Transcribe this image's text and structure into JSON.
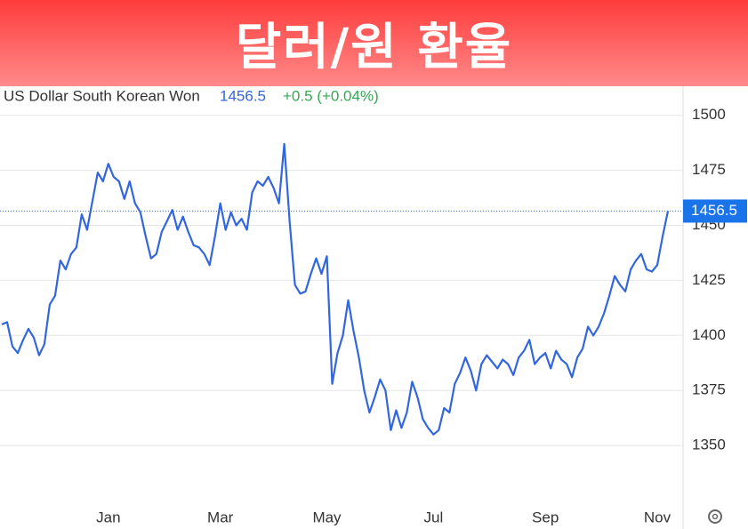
{
  "chart_data": {
    "type": "line",
    "title": "달러/원 환율",
    "change": "+0.5 (+0.04%)",
    "categories": [
      null,
      null,
      null,
      null,
      null,
      null,
      null,
      null,
      null,
      null,
      null,
      null,
      null,
      null,
      null,
      null,
      null,
      null,
      null,
      null,
      "Jan",
      null,
      null,
      null,
      null,
      null,
      null,
      null,
      null,
      null,
      null,
      null,
      null,
      null,
      null,
      null,
      null,
      null,
      null,
      null,
      null,
      "Mar",
      null,
      null,
      null,
      null,
      null,
      null,
      null,
      null,
      null,
      null,
      null,
      null,
      null,
      null,
      null,
      null,
      null,
      null,
      null,
      "May",
      null,
      null,
      null,
      null,
      null,
      null,
      null,
      null,
      null,
      null,
      null,
      null,
      null,
      null,
      null,
      null,
      null,
      null,
      null,
      "Jul",
      null,
      null,
      null,
      null,
      null,
      null,
      null,
      null,
      null,
      null,
      null,
      null,
      null,
      null,
      null,
      null,
      null,
      null,
      null,
      null,
      "Sep",
      null,
      null,
      null,
      null,
      null,
      null,
      null,
      null,
      null,
      null,
      null,
      null,
      null,
      null,
      null,
      null,
      null,
      null,
      null,
      null,
      "Nov",
      null,
      null
    ],
    "series": [
      {
        "name": "US Dollar South Korean Won",
        "color": "#3366dd",
        "values": [
          1405,
          1406,
          1395,
          1392,
          1398,
          1403,
          1399,
          1391,
          1396,
          1414,
          1418,
          1434,
          1430,
          1437,
          1440,
          1455,
          1448,
          1461,
          1474,
          1470,
          1478,
          1472,
          1470,
          1462,
          1470,
          1460,
          1456,
          1445,
          1435,
          1437,
          1447,
          1452,
          1457,
          1448,
          1454,
          1447,
          1441,
          1440,
          1437,
          1432,
          1445,
          1460,
          1448,
          1456,
          1450,
          1453,
          1448,
          1465,
          1470,
          1468,
          1472,
          1467,
          1460,
          1487,
          1452,
          1423,
          1419,
          1420,
          1428,
          1435,
          1428,
          1436,
          1378,
          1392,
          1400,
          1416,
          1402,
          1390,
          1375,
          1365,
          1372,
          1380,
          1375,
          1357,
          1366,
          1358,
          1365,
          1379,
          1372,
          1362,
          1358,
          1355,
          1357,
          1367,
          1365,
          1378,
          1383,
          1390,
          1384,
          1375,
          1387,
          1391,
          1388,
          1385,
          1389,
          1387,
          1382,
          1390,
          1393,
          1398,
          1387,
          1390,
          1392,
          1385,
          1393,
          1389,
          1387,
          1381,
          1390,
          1394,
          1404,
          1400,
          1404,
          1410,
          1418,
          1427,
          1423,
          1420,
          1430,
          1434,
          1437,
          1430,
          1429,
          1432,
          1445,
          1456.5
        ]
      }
    ],
    "ylim": [
      1325,
      1512
    ],
    "yticks": [
      1350,
      1375,
      1400,
      1425,
      1450,
      1475,
      1500
    ],
    "grid": true
  }
}
